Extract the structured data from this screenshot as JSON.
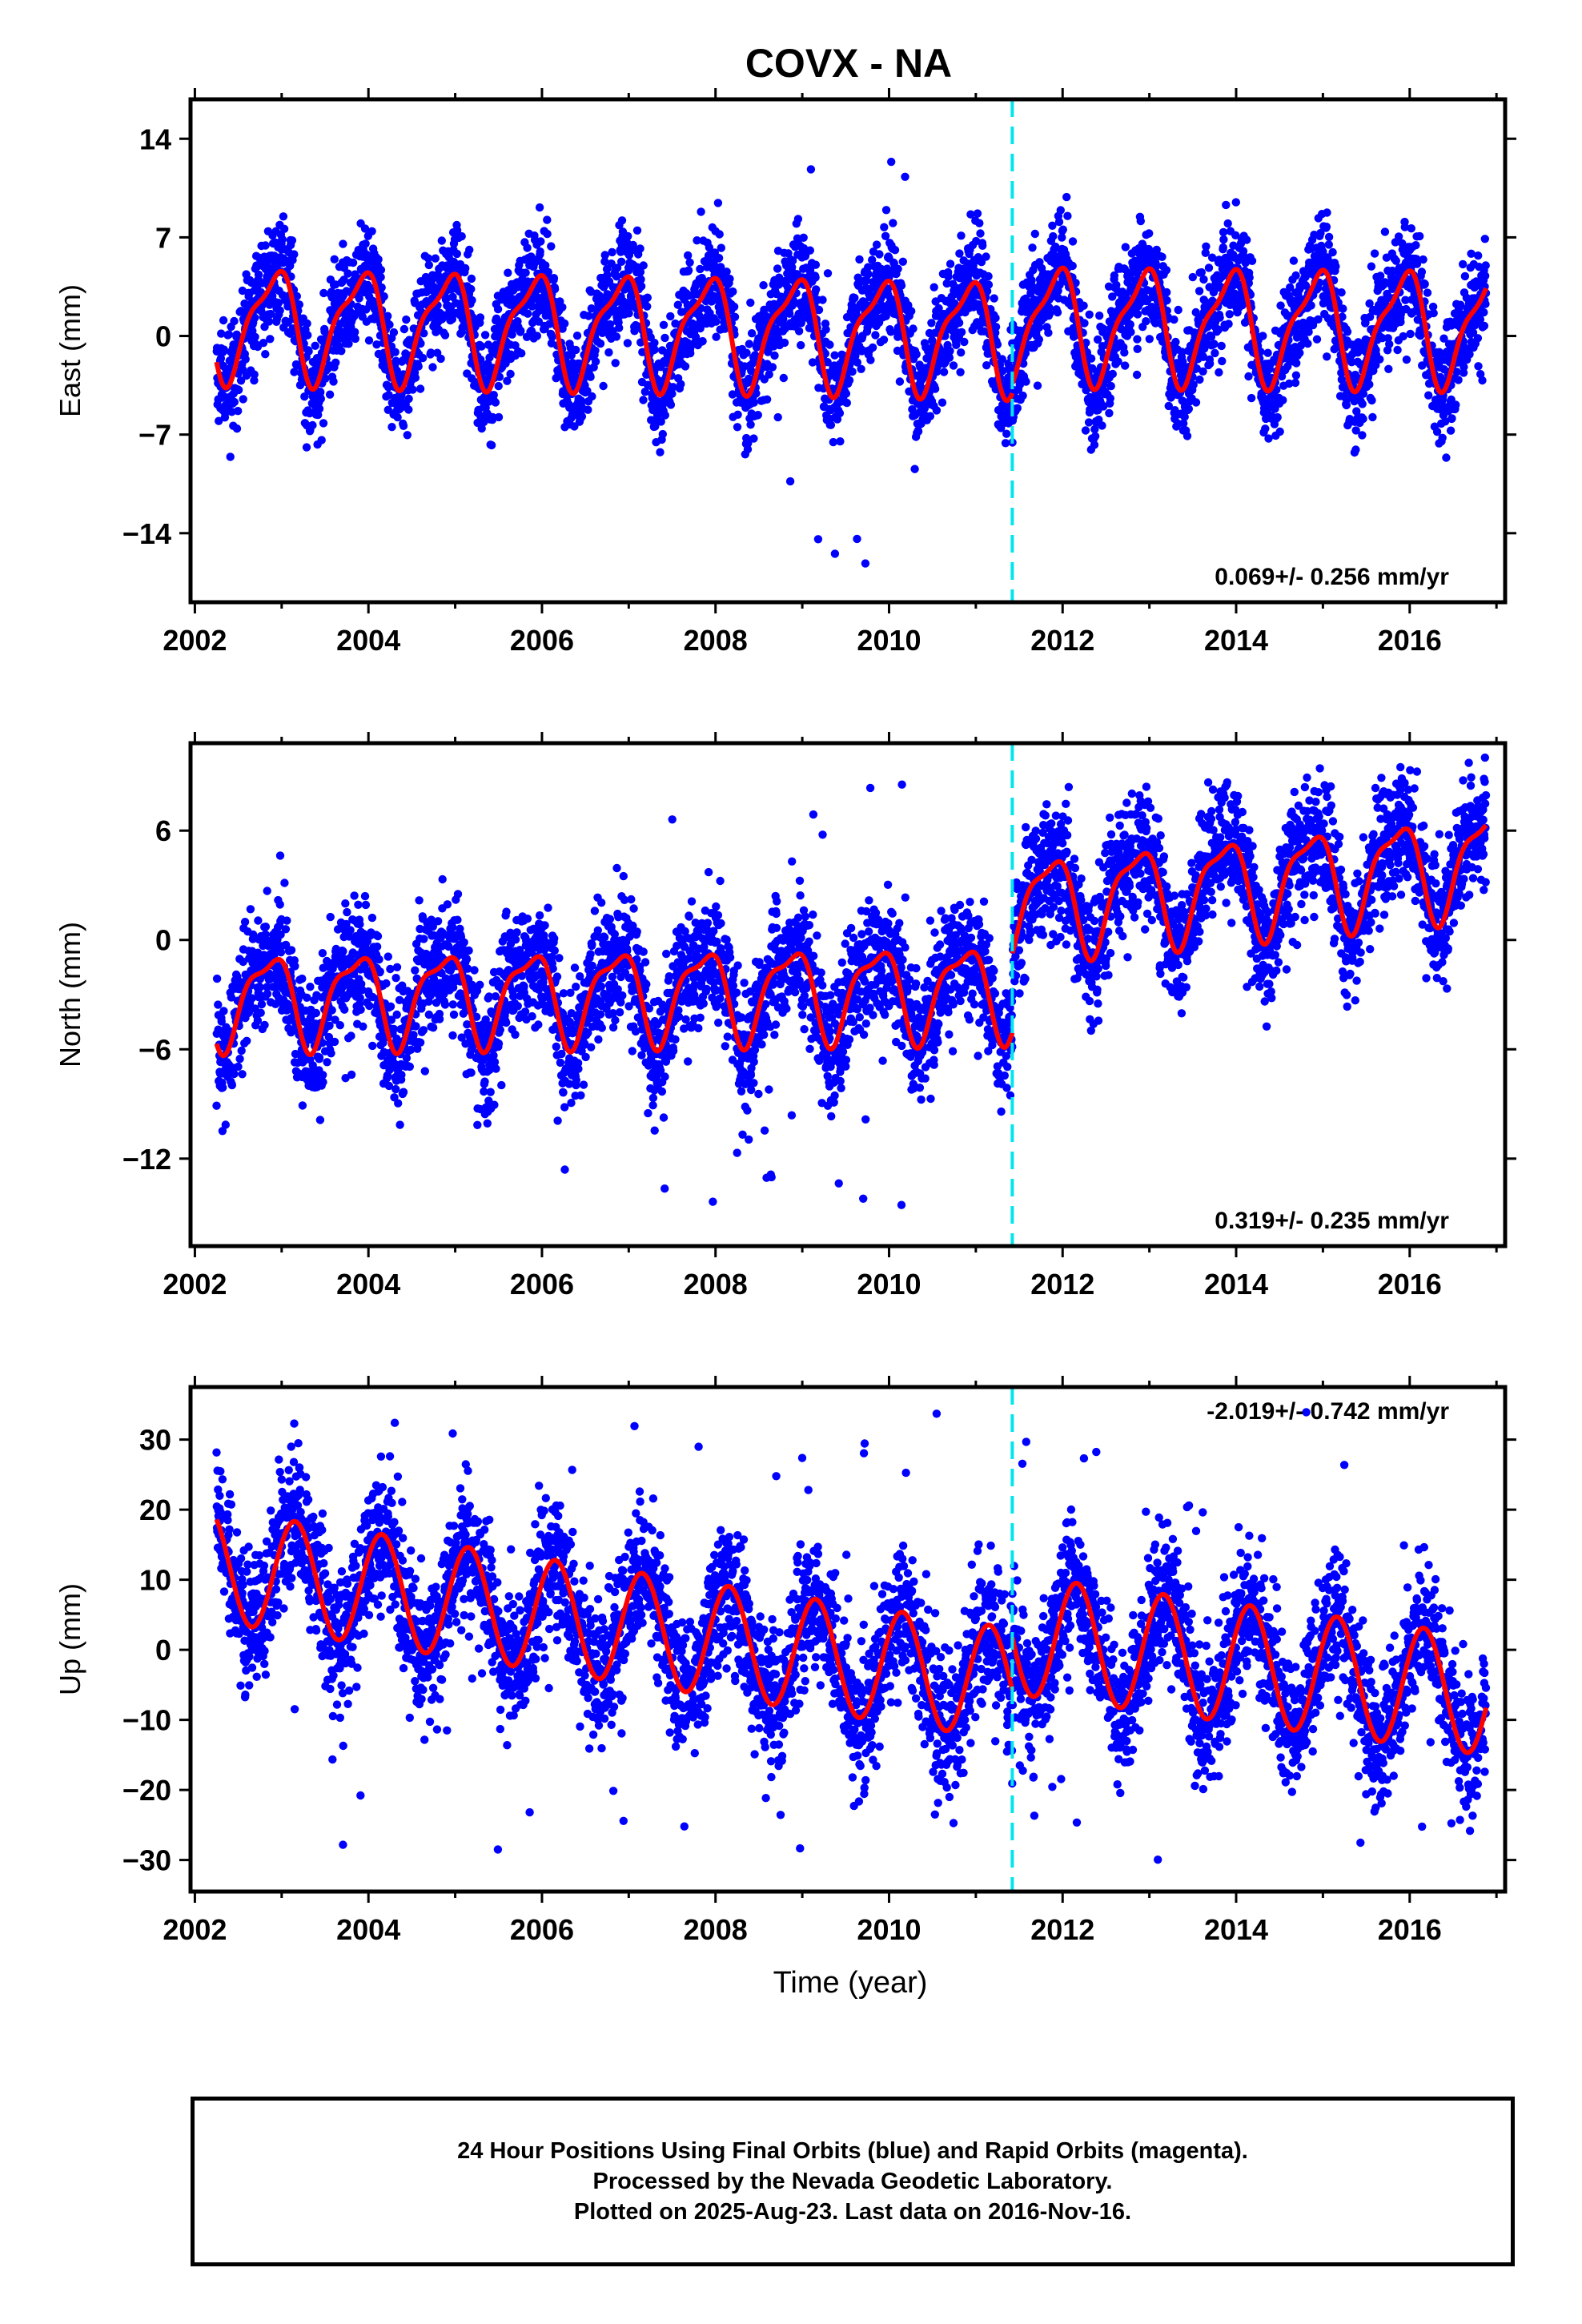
{
  "title": "COVX - NA",
  "x_axis_label": "Time (year)",
  "footer": {
    "line1": "24 Hour Positions Using Final Orbits (blue) and Rapid Orbits (magenta).",
    "line2": "Processed by the Nevada Geodetic Laboratory.",
    "line3": "Plotted on 2025-Aug-23. Last data on 2016-Nov-16."
  },
  "colors": {
    "points": "#0000ff",
    "fit": "#ff0000",
    "event": "#00e5ee",
    "frame": "#000000"
  },
  "chart_data": [
    {
      "type": "scatter",
      "name": "east",
      "ylabel": "East (mm)",
      "rate_label": "0.069+/- 0.256 mm/yr",
      "rate_position": "bottom-right",
      "xlim": [
        2001.95,
        2017.1
      ],
      "ylim": [
        -18.9,
        16.8
      ],
      "xticks": [
        2002,
        2004,
        2006,
        2008,
        2010,
        2012,
        2014,
        2016
      ],
      "yticks": [
        -14,
        -7,
        0,
        7,
        14
      ],
      "ytick_labels": [
        "−14",
        "−7",
        "0",
        "7",
        "14"
      ],
      "event_line_x": 2011.42,
      "data_span": [
        2002.25,
        2016.88
      ],
      "fit_segments": [
        {
          "start": 2002.25,
          "end": 2011.42,
          "offset": 1.0,
          "trend": -0.1,
          "amp_annual": 3.7,
          "phase_annual": 2.2,
          "amp_semi": 1.2,
          "phase_semi": 0.6
        },
        {
          "start": 2011.42,
          "end": 2016.88,
          "offset": 0.9,
          "trend": -0.05,
          "amp_annual": 3.8,
          "phase_annual": 2.1,
          "amp_semi": 1.2,
          "phase_semi": 0.6
        }
      ],
      "noise_sigma": 1.9,
      "outlier_fraction": 0.03,
      "outlier_ranges": [
        [
          2008.5,
          2010.2,
          -17.0,
          15.5
        ]
      ],
      "gridlines": false
    },
    {
      "type": "scatter",
      "name": "north",
      "ylabel": "North (mm)",
      "rate_label": "0.319+/- 0.235 mm/yr",
      "rate_position": "bottom-right",
      "xlim": [
        2001.95,
        2017.1
      ],
      "ylim": [
        -16.8,
        10.8
      ],
      "xticks": [
        2002,
        2004,
        2006,
        2008,
        2010,
        2012,
        2014,
        2016
      ],
      "yticks": [
        -12,
        -6,
        0,
        6
      ],
      "ytick_labels": [
        "−12",
        "−6",
        "0",
        "6"
      ],
      "event_line_x": 2011.42,
      "data_span": [
        2002.25,
        2016.88
      ],
      "fit_segments": [
        {
          "start": 2002.25,
          "end": 2011.42,
          "offset": -3.2,
          "trend": 0.05,
          "amp_annual": 2.4,
          "phase_annual": 2.5,
          "amp_semi": 0.8,
          "phase_semi": 0.8
        },
        {
          "start": 2011.42,
          "end": 2016.88,
          "offset": 1.8,
          "trend": 0.45,
          "amp_annual": 2.6,
          "phase_annual": 2.5,
          "amp_semi": 0.8,
          "phase_semi": 0.8
        }
      ],
      "noise_sigma": 1.7,
      "outlier_fraction": 0.02,
      "outlier_ranges": [
        [
          2005.8,
          2010.2,
          -15.5,
          9.0
        ]
      ],
      "gridlines": false
    },
    {
      "type": "scatter",
      "name": "up",
      "ylabel": "Up (mm)",
      "rate_label": "-2.019+/- 0.742 mm/yr",
      "rate_position": "top-right",
      "xlim": [
        2001.95,
        2017.1
      ],
      "ylim": [
        -34.5,
        37.5
      ],
      "xticks": [
        2002,
        2004,
        2006,
        2008,
        2010,
        2012,
        2014,
        2016
      ],
      "yticks": [
        -30,
        -20,
        -10,
        0,
        10,
        20,
        30
      ],
      "ytick_labels": [
        "−30",
        "−20",
        "−10",
        "0",
        "10",
        "20",
        "30"
      ],
      "event_line_x": 2011.42,
      "data_span": [
        2002.25,
        2016.88
      ],
      "fit_segments": [
        {
          "start": 2002.25,
          "end": 2011.42,
          "offset": 12.0,
          "trend": -1.85,
          "amp_annual": 8.0,
          "phase_annual": 0.6,
          "amp_semi": 0.0,
          "phase_semi": 0.0
        },
        {
          "start": 2011.42,
          "end": 2016.88,
          "offset": 2.2,
          "trend": -1.6,
          "amp_annual": 8.5,
          "phase_annual": 0.55,
          "amp_semi": 0.0,
          "phase_semi": 0.0
        }
      ],
      "noise_sigma": 4.8,
      "outlier_fraction": 0.02,
      "outlier_ranges": [
        [
          2002.5,
          2016.5,
          -30.0,
          35.0
        ]
      ],
      "gridlines": false
    }
  ]
}
